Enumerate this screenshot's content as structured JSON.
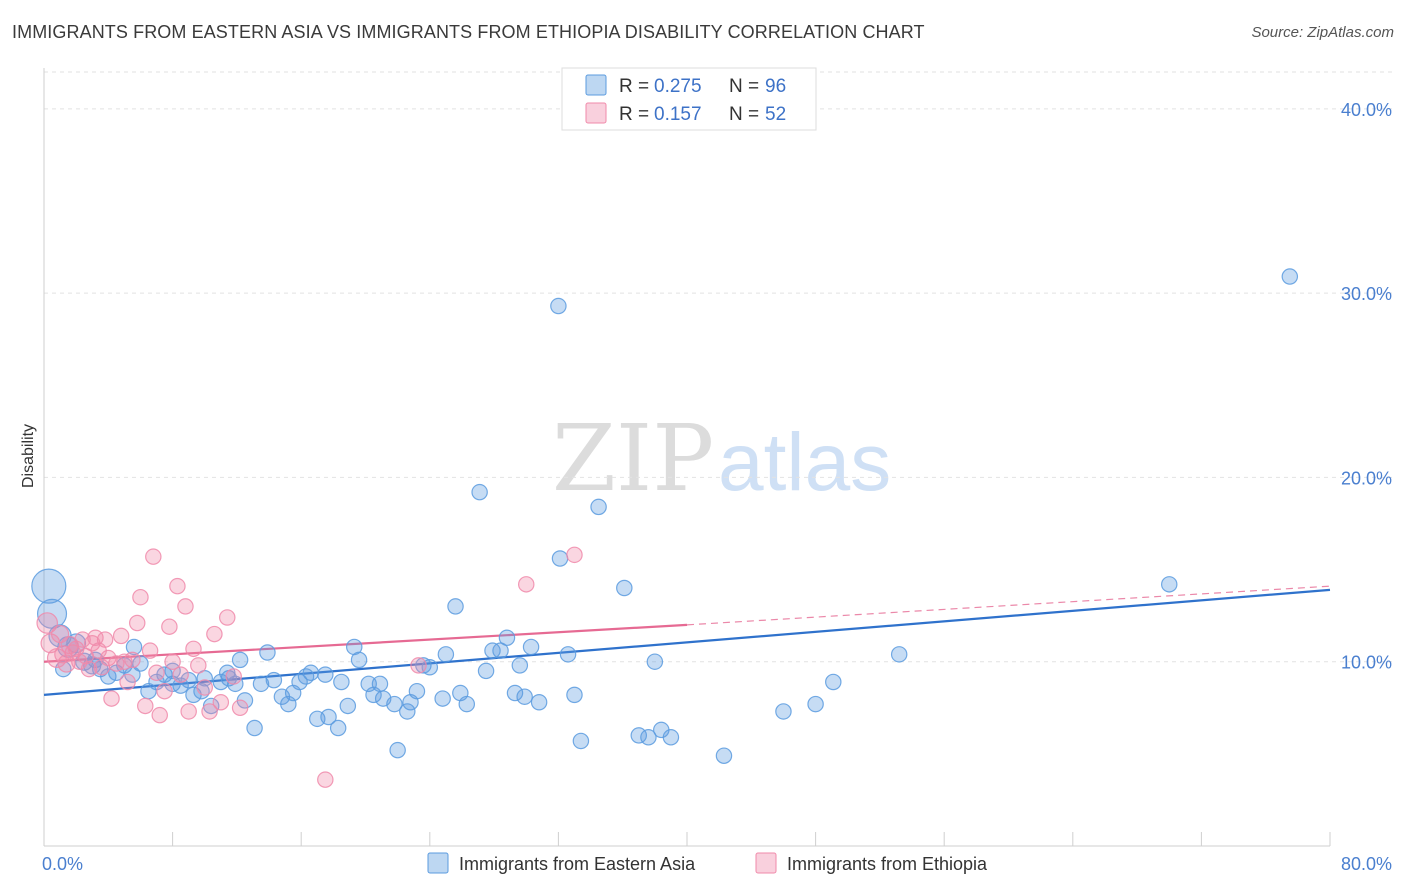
{
  "title": "IMMIGRANTS FROM EASTERN ASIA VS IMMIGRANTS FROM ETHIOPIA DISABILITY CORRELATION CHART",
  "source": "Source: ZipAtlas.com",
  "watermark": {
    "zip": "ZIP",
    "atlas": "atlas"
  },
  "chart_data": {
    "type": "scatter",
    "ylabel": "Disability",
    "xlim": [
      0,
      80
    ],
    "ylim": [
      0,
      42
    ],
    "x_tick_labels": [
      "0.0%",
      "80.0%"
    ],
    "y_ticks": [
      10,
      20,
      30,
      40
    ],
    "y_tick_labels": [
      "10.0%",
      "20.0%",
      "30.0%",
      "40.0%"
    ],
    "grid": true,
    "legend_position": "top-center",
    "series": [
      {
        "name": "Immigrants from Eastern Asia",
        "color": "#5b9bdf",
        "line_color": "#2f72cc",
        "R": "0.275",
        "N": "96",
        "trend": {
          "x": [
            0,
            80
          ],
          "y": [
            8.2,
            13.9
          ]
        },
        "points": [
          [
            0.3,
            14.1,
            20
          ],
          [
            0.5,
            12.6,
            17
          ],
          [
            1.0,
            11.4,
            13
          ],
          [
            1.5,
            10.8,
            12
          ],
          [
            2.0,
            11.0,
            11
          ],
          [
            2.5,
            10.0,
            10
          ],
          [
            3.0,
            9.8,
            10
          ],
          [
            3.5,
            9.6,
            9
          ],
          [
            4.0,
            9.2,
            9
          ],
          [
            4.5,
            9.4,
            9
          ],
          [
            5.0,
            9.8,
            9
          ],
          [
            5.5,
            9.3,
            9
          ],
          [
            5.6,
            10.8,
            9
          ],
          [
            6.5,
            8.4,
            9
          ],
          [
            7.0,
            8.9,
            9
          ],
          [
            7.5,
            9.3,
            9
          ],
          [
            8.0,
            8.8,
            9
          ],
          [
            8.5,
            8.7,
            9
          ],
          [
            9.0,
            9.0,
            9
          ],
          [
            9.3,
            8.2,
            9
          ],
          [
            10.0,
            9.1,
            9
          ],
          [
            10.4,
            7.6,
            9
          ],
          [
            11.0,
            8.9,
            9
          ],
          [
            11.4,
            9.4,
            9
          ],
          [
            11.9,
            8.8,
            9
          ],
          [
            12.2,
            10.1,
            9
          ],
          [
            12.5,
            7.9,
            9
          ],
          [
            13.1,
            6.4,
            9
          ],
          [
            13.5,
            8.8,
            9
          ],
          [
            13.9,
            10.5,
            9
          ],
          [
            14.3,
            9.0,
            9
          ],
          [
            14.8,
            8.1,
            9
          ],
          [
            15.2,
            7.7,
            9
          ],
          [
            15.5,
            8.3,
            9
          ],
          [
            15.9,
            8.9,
            9
          ],
          [
            16.3,
            9.2,
            9
          ],
          [
            16.6,
            9.4,
            9
          ],
          [
            17.0,
            6.9,
            9
          ],
          [
            17.5,
            9.3,
            9
          ],
          [
            17.7,
            7.0,
            9
          ],
          [
            18.3,
            6.4,
            9
          ],
          [
            18.5,
            8.9,
            9
          ],
          [
            18.9,
            7.6,
            9
          ],
          [
            19.3,
            10.8,
            9
          ],
          [
            19.6,
            10.1,
            9
          ],
          [
            20.2,
            8.8,
            9
          ],
          [
            20.5,
            8.2,
            9
          ],
          [
            20.9,
            8.8,
            9
          ],
          [
            21.1,
            8.0,
            9
          ],
          [
            21.8,
            7.7,
            9
          ],
          [
            22.0,
            5.2,
            9
          ],
          [
            22.6,
            7.3,
            9
          ],
          [
            22.8,
            7.8,
            9
          ],
          [
            23.2,
            8.4,
            9
          ],
          [
            23.6,
            9.8,
            9
          ],
          [
            24.0,
            9.7,
            9
          ],
          [
            24.8,
            8.0,
            9
          ],
          [
            25.0,
            10.4,
            9
          ],
          [
            25.6,
            13.0,
            9
          ],
          [
            25.9,
            8.3,
            9
          ],
          [
            26.3,
            7.7,
            9
          ],
          [
            27.1,
            19.2,
            9
          ],
          [
            27.5,
            9.5,
            9
          ],
          [
            27.9,
            10.6,
            9
          ],
          [
            28.4,
            10.6,
            9
          ],
          [
            28.8,
            11.3,
            9
          ],
          [
            29.3,
            8.3,
            9
          ],
          [
            29.6,
            9.8,
            9
          ],
          [
            29.9,
            8.1,
            9
          ],
          [
            30.3,
            10.8,
            9
          ],
          [
            30.8,
            7.8,
            9
          ],
          [
            32.0,
            29.3,
            9
          ],
          [
            32.1,
            15.6,
            9
          ],
          [
            32.6,
            10.4,
            9
          ],
          [
            33.0,
            8.2,
            9
          ],
          [
            33.4,
            5.7,
            9
          ],
          [
            34.5,
            18.4,
            9
          ],
          [
            36.1,
            14.0,
            9
          ],
          [
            37.0,
            6.0,
            9
          ],
          [
            37.6,
            5.9,
            9
          ],
          [
            38.0,
            10.0,
            9
          ],
          [
            38.4,
            6.3,
            9
          ],
          [
            39.0,
            5.9,
            9
          ],
          [
            42.3,
            4.9,
            9
          ],
          [
            46.0,
            7.3,
            9
          ],
          [
            48.0,
            7.7,
            9
          ],
          [
            49.1,
            8.9,
            9
          ],
          [
            53.2,
            10.4,
            9
          ],
          [
            70.0,
            14.2,
            9
          ],
          [
            77.5,
            30.9,
            9
          ],
          [
            1.2,
            9.6,
            9
          ],
          [
            3.2,
            10.1,
            9
          ],
          [
            6.0,
            9.9,
            9
          ],
          [
            8.0,
            9.5,
            9
          ],
          [
            9.8,
            8.4,
            9
          ],
          [
            11.5,
            9.1,
            9
          ]
        ]
      },
      {
        "name": "Immigrants from Ethiopia",
        "color": "#f08aaa",
        "line_color": "#e66a93",
        "R": "0.157",
        "N": "52",
        "trend": {
          "x": [
            0,
            40
          ],
          "y": [
            10.0,
            12.0
          ]
        },
        "trend_extension": {
          "x": [
            40,
            80
          ],
          "y": [
            12.0,
            14.1
          ]
        },
        "points": [
          [
            0.2,
            12.1,
            12
          ],
          [
            0.4,
            11.0,
            11
          ],
          [
            0.8,
            10.2,
            11
          ],
          [
            1.0,
            11.5,
            10
          ],
          [
            1.2,
            10.4,
            10
          ],
          [
            1.4,
            9.9,
            10
          ],
          [
            1.6,
            10.9,
            10
          ],
          [
            1.8,
            10.5,
            9
          ],
          [
            2.0,
            10.7,
            9
          ],
          [
            2.2,
            10.0,
            9
          ],
          [
            2.4,
            11.2,
            9
          ],
          [
            2.6,
            10.3,
            9
          ],
          [
            2.8,
            9.6,
            9
          ],
          [
            3.0,
            11.0,
            9
          ],
          [
            3.2,
            11.3,
            9
          ],
          [
            3.4,
            10.6,
            9
          ],
          [
            3.6,
            9.7,
            9
          ],
          [
            3.8,
            11.2,
            9
          ],
          [
            4.0,
            10.2,
            9
          ],
          [
            4.2,
            8.0,
            9
          ],
          [
            4.5,
            9.9,
            9
          ],
          [
            4.8,
            11.4,
            9
          ],
          [
            5.0,
            10.0,
            9
          ],
          [
            5.2,
            8.9,
            9
          ],
          [
            5.5,
            10.1,
            9
          ],
          [
            5.8,
            12.1,
            9
          ],
          [
            6.0,
            13.5,
            9
          ],
          [
            6.3,
            7.6,
            9
          ],
          [
            6.6,
            10.6,
            9
          ],
          [
            6.8,
            15.7,
            9
          ],
          [
            7.0,
            9.4,
            9
          ],
          [
            7.2,
            7.1,
            9
          ],
          [
            7.5,
            8.4,
            9
          ],
          [
            7.8,
            11.9,
            9
          ],
          [
            8.0,
            10.0,
            9
          ],
          [
            8.3,
            14.1,
            9
          ],
          [
            8.5,
            9.3,
            9
          ],
          [
            8.8,
            13.0,
            9
          ],
          [
            9.0,
            7.3,
            9
          ],
          [
            9.3,
            10.7,
            9
          ],
          [
            9.6,
            9.8,
            9
          ],
          [
            10.0,
            8.6,
            9
          ],
          [
            10.3,
            7.3,
            9
          ],
          [
            10.6,
            11.5,
            9
          ],
          [
            11.0,
            7.8,
            9
          ],
          [
            11.4,
            12.4,
            9
          ],
          [
            11.8,
            9.2,
            9
          ],
          [
            12.2,
            7.5,
            9
          ],
          [
            17.5,
            3.6,
            9
          ],
          [
            23.3,
            9.8,
            9
          ],
          [
            30.0,
            14.2,
            9
          ],
          [
            33.0,
            15.8,
            9
          ]
        ]
      }
    ]
  }
}
